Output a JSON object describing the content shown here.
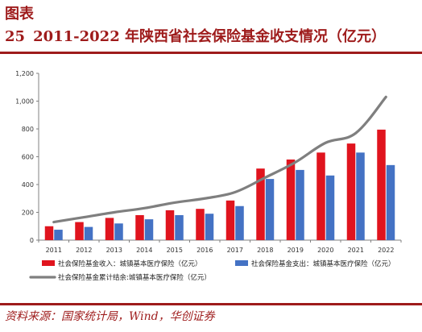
{
  "header": {
    "figure_label": "图表",
    "figure_number": "25",
    "title": "2011-2022 年陕西省社会保险基金收支情况（亿元）"
  },
  "source": "资料来源：国家统计局，Wind，华创证券",
  "colors": {
    "accent": "#9e1b1b",
    "income": "#e0141e",
    "expense": "#4472c4",
    "balance": "#7f7f7f"
  },
  "chart_data": {
    "type": "bar",
    "categories": [
      "2011",
      "2012",
      "2013",
      "2014",
      "2015",
      "2016",
      "2017",
      "2018",
      "2019",
      "2020",
      "2021",
      "2022"
    ],
    "series": [
      {
        "name": "社会保险基金收入：城镇基本医疗保险（亿元）",
        "type": "bar",
        "values": [
          100,
          130,
          160,
          180,
          215,
          225,
          285,
          515,
          580,
          630,
          695,
          795
        ]
      },
      {
        "name": "社会保险基金支出：城镇基本医疗保险（亿元）",
        "type": "bar",
        "values": [
          75,
          95,
          120,
          150,
          180,
          190,
          245,
          440,
          505,
          465,
          630,
          540
        ]
      },
      {
        "name": "社会保险基金累计结余:城镇基本医疗保险（亿元）",
        "type": "line",
        "values": [
          130,
          165,
          200,
          230,
          270,
          300,
          345,
          450,
          560,
          700,
          770,
          1030
        ]
      }
    ],
    "ylim": [
      0,
      1200
    ],
    "yticks": [
      "0",
      "200",
      "400",
      "600",
      "800",
      "1,000",
      "1,200"
    ],
    "grid": false,
    "legend_position": "bottom"
  }
}
